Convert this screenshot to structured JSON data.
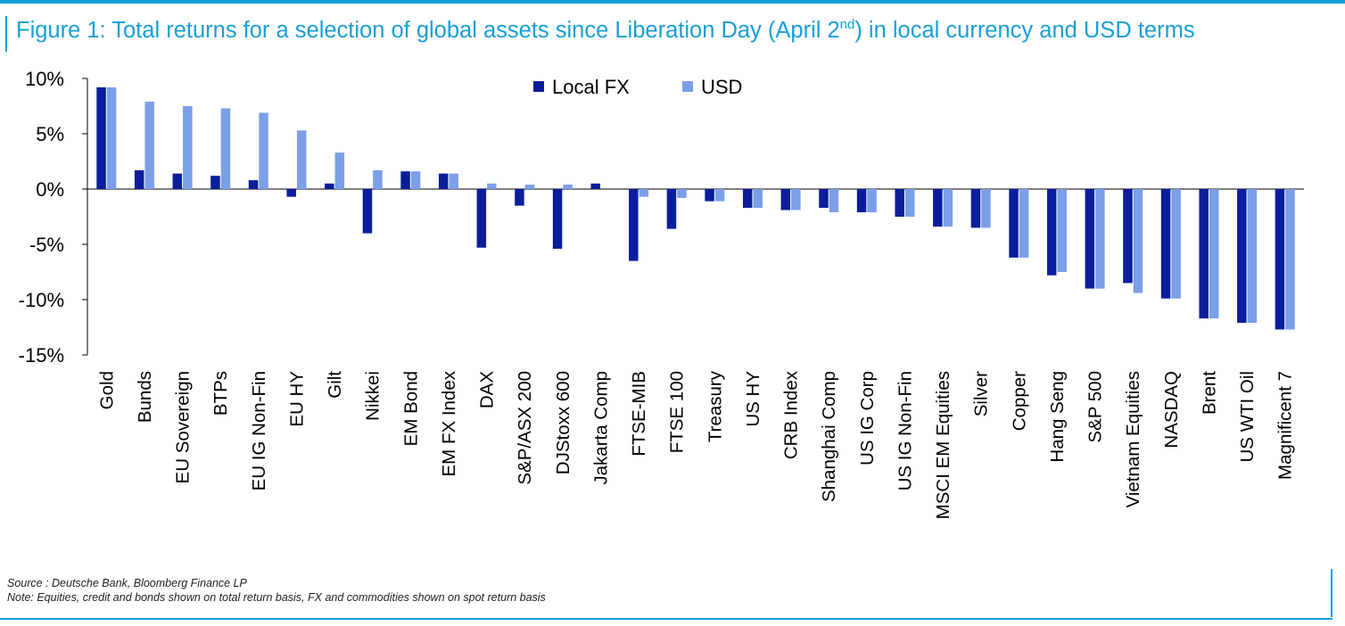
{
  "colors": {
    "frame": "#1aa0d8",
    "title": "#1a9fd6",
    "local": "#0a1e9a",
    "usd": "#7b9fe8",
    "text": "#000000"
  },
  "title": {
    "prefix": "Figure 1: Total returns for a selection of global assets since Liberation Day (April 2",
    "superscript": "nd",
    "suffix": ") in local currency and USD terms"
  },
  "footer": {
    "source": "Source : Deutsche Bank, Bloomberg Finance LP",
    "note": "Note: Equities, credit and bonds shown on total return basis, FX and commodities shown on spot return basis"
  },
  "chart_data": {
    "type": "bar",
    "title": "",
    "xlabel": "",
    "ylabel": "",
    "ylim": [
      -15,
      10
    ],
    "yticks": [
      10,
      5,
      0,
      -5,
      -10,
      -15
    ],
    "ytick_labels": [
      "10%",
      "5%",
      "0%",
      "-5%",
      "-10%",
      "-15%"
    ],
    "legend_position": "top-center",
    "grid": false,
    "categories": [
      "Gold",
      "Bunds",
      "EU Sovereign",
      "BTPs",
      "EU IG Non-Fin",
      "EU HY",
      "Gilt",
      "Nikkei",
      "EM Bond",
      "EM FX Index",
      "DAX",
      "S&P/ASX 200",
      "DJStoxx 600",
      "Jakarta Comp",
      "FTSE-MIB",
      "FTSE 100",
      "Treasury",
      "US HY",
      "CRB Index",
      "Shanghai Comp",
      "US IG Corp",
      "US IG Non-Fin",
      "MSCI EM Equities",
      "Silver",
      "Copper",
      "Hang Seng",
      "S&P 500",
      "Vietnam Equities",
      "NASDAQ",
      "Brent",
      "US WTI Oil",
      "Magnificent 7"
    ],
    "series": [
      {
        "name": "Local FX",
        "values": [
          9.2,
          1.7,
          1.4,
          1.2,
          0.8,
          -0.7,
          0.5,
          -4.0,
          1.6,
          1.4,
          -5.3,
          -1.5,
          -5.4,
          0.5,
          -6.5,
          -3.6,
          -1.1,
          -1.7,
          -1.9,
          -1.7,
          -2.1,
          -2.5,
          -3.4,
          -3.5,
          -6.2,
          -7.8,
          -9.0,
          -8.5,
          -9.9,
          -11.7,
          -12.1,
          -12.7
        ]
      },
      {
        "name": "USD",
        "values": [
          9.2,
          7.9,
          7.5,
          7.3,
          6.9,
          5.3,
          3.3,
          1.7,
          1.6,
          1.4,
          0.5,
          0.4,
          0.4,
          0.0,
          -0.7,
          -0.8,
          -1.1,
          -1.7,
          -1.9,
          -2.1,
          -2.1,
          -2.5,
          -3.4,
          -3.5,
          -6.2,
          -7.5,
          -9.0,
          -9.4,
          -9.9,
          -11.7,
          -12.1,
          -12.7
        ]
      }
    ]
  }
}
